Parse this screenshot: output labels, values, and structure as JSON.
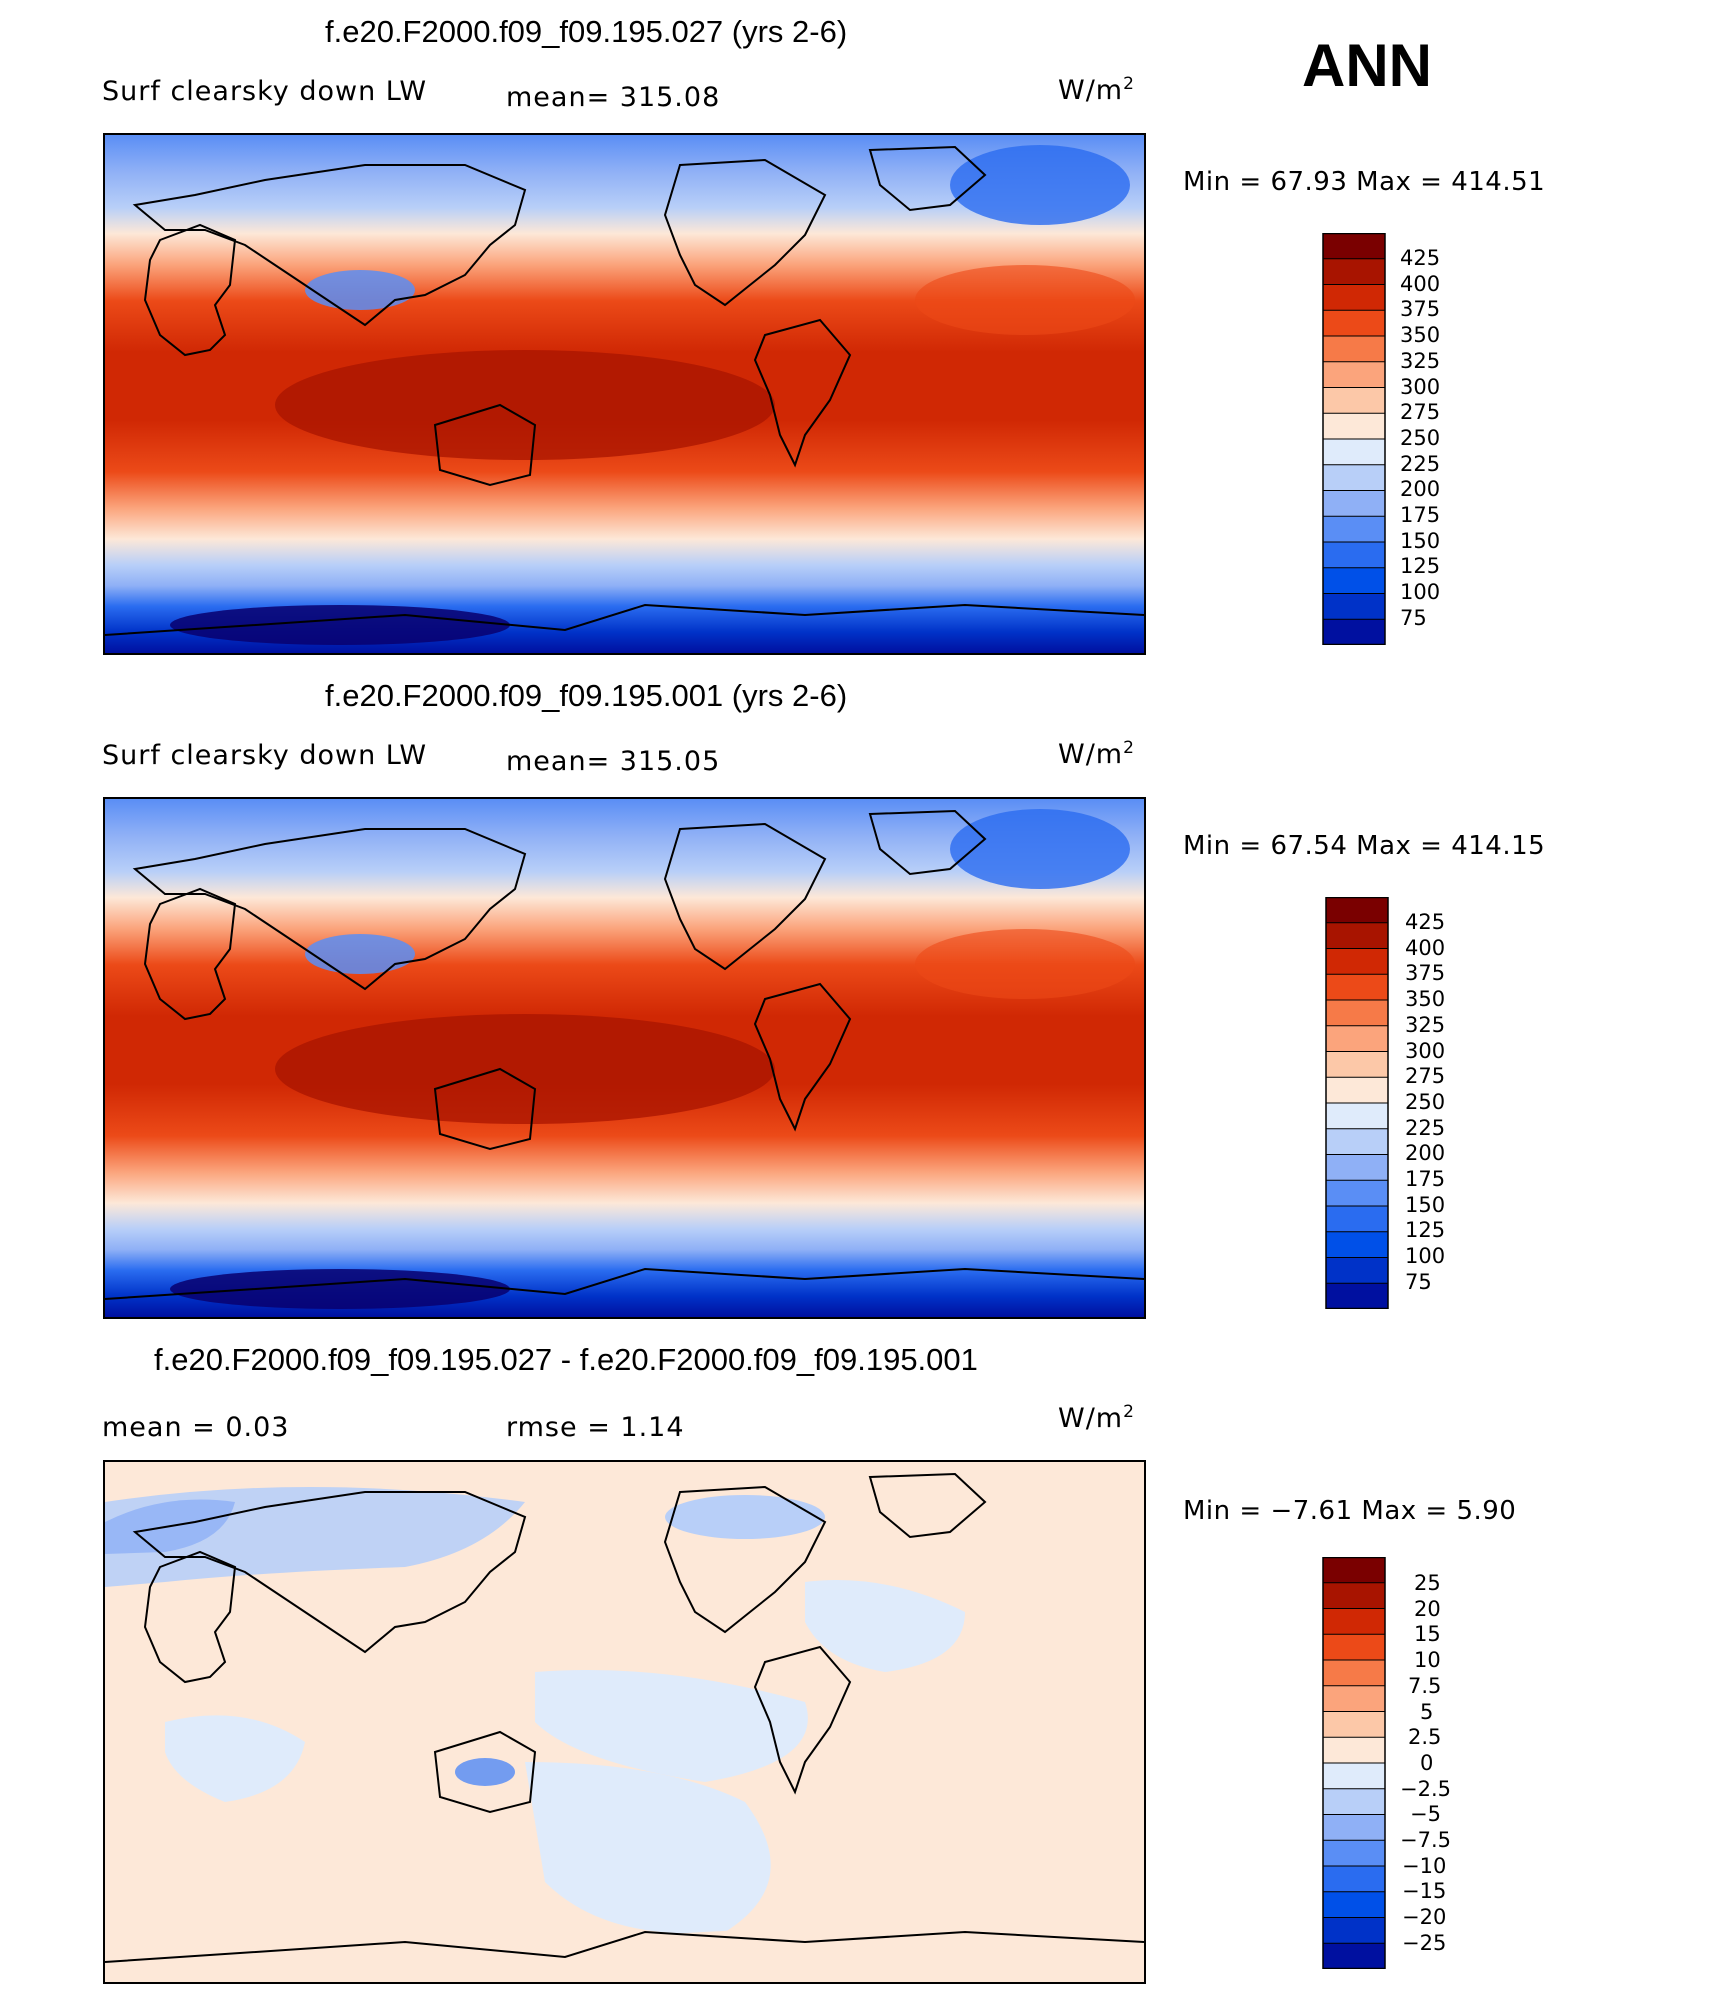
{
  "season": "ANN",
  "colors": [
    "#08006e",
    "#0010a0",
    "#0032c8",
    "#0050e8",
    "#2a6cf0",
    "#5a8ef5",
    "#8fb0f6",
    "#b8cff8",
    "#dfebfb",
    "#fde8d8",
    "#fcc8a8",
    "#fba47c",
    "#f67a48",
    "#ec4a18",
    "#d02804",
    "#a81400",
    "#7a0000"
  ],
  "diff_colors": [
    "#08006e",
    "#0010a0",
    "#0032c8",
    "#0050e8",
    "#2a6cf0",
    "#5a8ef5",
    "#8fb0f6",
    "#b8cff8",
    "#dfebfb",
    "#fde8d8",
    "#fcc8a8",
    "#fba47c",
    "#f67a48",
    "#ec4a18",
    "#d02804",
    "#a81400",
    "#7a0000"
  ],
  "panels": [
    {
      "title": "f.e20.F2000.f09_f09.195.027 (yrs 2-6)",
      "variable": "Surf clearsky down LW",
      "stat": "mean=  315.08",
      "units": "W/m",
      "units_sup": "2",
      "minmax": "Min =    67.93  Max  =  414.51",
      "ticks": [
        "425",
        "400",
        "375",
        "350",
        "325",
        "300",
        "275",
        "250",
        "225",
        "200",
        "175",
        "150",
        "125",
        "100",
        "75"
      ]
    },
    {
      "title": "f.e20.F2000.f09_f09.195.001 (yrs 2-6)",
      "variable": "Surf clearsky down LW",
      "stat": "mean=  315.05",
      "units": "W/m",
      "units_sup": "2",
      "minmax": "Min =    67.54  Max  =  414.15",
      "ticks": [
        "425",
        "400",
        "375",
        "350",
        "325",
        "300",
        "275",
        "250",
        "225",
        "200",
        "175",
        "150",
        "125",
        "100",
        "75"
      ]
    },
    {
      "title": "f.e20.F2000.f09_f09.195.027 - f.e20.F2000.f09_f09.195.001",
      "variable": "mean  =     0.03",
      "stat": "rmse  =     1.14",
      "units": "W/m",
      "units_sup": "2",
      "minmax": "Min =   −7.61  Max  =     5.90",
      "ticks": [
        "25",
        "20",
        "15",
        "10",
        "7.5",
        "5",
        "2.5",
        "0",
        "−2.5",
        "−5",
        "−7.5",
        "−10",
        "−15",
        "−20",
        "−25"
      ]
    }
  ],
  "chart_data": [
    {
      "type": "heatmap",
      "title": "f.e20.F2000.f09_f09.195.027 (yrs 2-6)",
      "variable": "Surf clearsky down LW",
      "units": "W/m2",
      "mean": 315.08,
      "min": 67.93,
      "max": 414.51,
      "levels": [
        75,
        100,
        125,
        150,
        175,
        200,
        225,
        250,
        275,
        300,
        325,
        350,
        375,
        400,
        425
      ]
    },
    {
      "type": "heatmap",
      "title": "f.e20.F2000.f09_f09.195.001 (yrs 2-6)",
      "variable": "Surf clearsky down LW",
      "units": "W/m2",
      "mean": 315.05,
      "min": 67.54,
      "max": 414.15,
      "levels": [
        75,
        100,
        125,
        150,
        175,
        200,
        225,
        250,
        275,
        300,
        325,
        350,
        375,
        400,
        425
      ]
    },
    {
      "type": "heatmap",
      "title": "f.e20.F2000.f09_f09.195.027 - f.e20.F2000.f09_f09.195.001",
      "units": "W/m2",
      "mean": 0.03,
      "rmse": 1.14,
      "min": -7.61,
      "max": 5.9,
      "levels": [
        -25,
        -20,
        -15,
        -10,
        -7.5,
        -5,
        -2.5,
        0,
        2.5,
        5,
        7.5,
        10,
        15,
        20,
        25
      ]
    }
  ]
}
